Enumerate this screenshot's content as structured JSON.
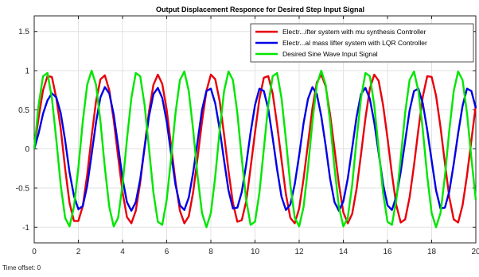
{
  "chart_data": {
    "type": "line",
    "title": "Output Displacement Responce for Desired Step Input Signal",
    "xlabel": "",
    "ylabel": "",
    "xlim": [
      0,
      20
    ],
    "ylim": [
      -1.2,
      1.7
    ],
    "xticks": [
      0,
      2,
      4,
      6,
      8,
      10,
      12,
      14,
      16,
      18,
      20
    ],
    "xtick_labels": [
      "0",
      "2",
      "4",
      "6",
      "8",
      "10",
      "12",
      "14",
      "16",
      "18",
      "20"
    ],
    "yticks": [
      -1,
      -0.5,
      0,
      0.5,
      1,
      1.5
    ],
    "ytick_labels": [
      "-1",
      "-0.5",
      "0",
      "0.5",
      "1",
      "1.5"
    ],
    "grid": true,
    "legend_position": "top-right",
    "series": [
      {
        "name": "Electr...ifter system with mu synthesis Controller",
        "color": "#e8000b",
        "x": [
          0,
          0.2,
          0.4,
          0.6,
          0.8,
          1.0,
          1.2,
          1.4,
          1.6,
          1.8,
          2.0,
          2.2,
          2.4,
          2.6,
          2.8,
          3.0,
          3.2,
          3.4,
          3.6,
          3.8,
          4.0,
          4.2,
          4.4,
          4.6,
          4.8,
          5.0,
          5.2,
          5.4,
          5.6,
          5.8,
          6.0,
          6.2,
          6.4,
          6.6,
          6.8,
          7.0,
          7.2,
          7.4,
          7.6,
          7.8,
          8.0,
          8.2,
          8.4,
          8.6,
          8.8,
          9.0,
          9.2,
          9.4,
          9.6,
          9.8,
          10.0,
          10.2,
          10.4,
          10.6,
          10.8,
          11.0,
          11.2,
          11.4,
          11.6,
          11.8,
          12.0,
          12.2,
          12.4,
          12.6,
          12.8,
          13.0,
          13.2,
          13.4,
          13.6,
          13.8,
          14.0,
          14.2,
          14.4,
          14.6,
          14.8,
          15.0,
          15.2,
          15.4,
          15.6,
          15.8,
          16.0,
          16.2,
          16.4,
          16.6,
          16.8,
          17.0,
          17.2,
          17.4,
          17.6,
          17.8,
          18.0,
          18.2,
          18.4,
          18.6,
          18.8,
          19.0,
          19.2,
          19.4,
          19.6,
          19.8,
          20.0
        ],
        "values": [
          0.0,
          0.4,
          0.75,
          0.93,
          0.92,
          0.65,
          0.26,
          -0.25,
          -0.69,
          -0.92,
          -0.92,
          -0.73,
          -0.33,
          0.16,
          0.61,
          0.89,
          0.94,
          0.75,
          0.37,
          -0.1,
          -0.55,
          -0.87,
          -0.95,
          -0.79,
          -0.43,
          0.03,
          0.48,
          0.82,
          0.95,
          0.83,
          0.5,
          0.04,
          -0.42,
          -0.79,
          -0.95,
          -0.86,
          -0.55,
          -0.11,
          0.35,
          0.74,
          0.95,
          0.89,
          0.61,
          0.18,
          -0.28,
          -0.69,
          -0.93,
          -0.91,
          -0.67,
          -0.24,
          0.21,
          0.64,
          0.91,
          0.93,
          0.71,
          0.31,
          -0.14,
          -0.58,
          -0.88,
          -0.95,
          -0.76,
          -0.38,
          0.07,
          0.52,
          0.85,
          0.95,
          0.8,
          0.44,
          0.0,
          -0.45,
          -0.81,
          -0.95,
          -0.83,
          -0.51,
          -0.07,
          0.39,
          0.77,
          0.95,
          0.87,
          0.56,
          0.14,
          -0.32,
          -0.72,
          -0.94,
          -0.9,
          -0.62,
          -0.21,
          0.25,
          0.67,
          0.93,
          0.92,
          0.68,
          0.28,
          -0.18,
          -0.62,
          -0.9,
          -0.94,
          -0.72,
          -0.34,
          0.11,
          0.56
        ]
      },
      {
        "name": "Electr...al mass lifter system with LQR Controller",
        "color": "#0000e6",
        "x": [
          0,
          0.2,
          0.4,
          0.6,
          0.8,
          1.0,
          1.2,
          1.4,
          1.6,
          1.8,
          2.0,
          2.2,
          2.4,
          2.6,
          2.8,
          3.0,
          3.2,
          3.4,
          3.6,
          3.8,
          4.0,
          4.2,
          4.4,
          4.6,
          4.8,
          5.0,
          5.2,
          5.4,
          5.6,
          5.8,
          6.0,
          6.2,
          6.4,
          6.6,
          6.8,
          7.0,
          7.2,
          7.4,
          7.6,
          7.8,
          8.0,
          8.2,
          8.4,
          8.6,
          8.8,
          9.0,
          9.2,
          9.4,
          9.6,
          9.8,
          10.0,
          10.2,
          10.4,
          10.6,
          10.8,
          11.0,
          11.2,
          11.4,
          11.6,
          11.8,
          12.0,
          12.2,
          12.4,
          12.6,
          12.8,
          13.0,
          13.2,
          13.4,
          13.6,
          13.8,
          14.0,
          14.2,
          14.4,
          14.6,
          14.8,
          15.0,
          15.2,
          15.4,
          15.6,
          15.8,
          16.0,
          16.2,
          16.4,
          16.6,
          16.8,
          17.0,
          17.2,
          17.4,
          17.6,
          17.8,
          18.0,
          18.2,
          18.4,
          18.6,
          18.8,
          19.0,
          19.2,
          19.4,
          19.6,
          19.8,
          20.0
        ],
        "values": [
          0.0,
          0.2,
          0.45,
          0.62,
          0.71,
          0.66,
          0.46,
          0.11,
          -0.3,
          -0.6,
          -0.77,
          -0.73,
          -0.47,
          -0.07,
          0.34,
          0.66,
          0.79,
          0.71,
          0.44,
          0.04,
          -0.38,
          -0.68,
          -0.79,
          -0.68,
          -0.39,
          0.02,
          0.42,
          0.7,
          0.78,
          0.65,
          0.35,
          -0.06,
          -0.46,
          -0.72,
          -0.78,
          -0.62,
          -0.3,
          0.1,
          0.5,
          0.74,
          0.77,
          0.58,
          0.25,
          -0.15,
          -0.53,
          -0.76,
          -0.75,
          -0.55,
          -0.2,
          0.21,
          0.56,
          0.77,
          0.74,
          0.51,
          0.14,
          -0.26,
          -0.61,
          -0.78,
          -0.71,
          -0.45,
          -0.08,
          0.33,
          0.64,
          0.79,
          0.7,
          0.42,
          0.04,
          -0.38,
          -0.68,
          -0.79,
          -0.67,
          -0.38,
          0.01,
          0.41,
          0.7,
          0.78,
          0.64,
          0.34,
          -0.05,
          -0.45,
          -0.72,
          -0.78,
          -0.61,
          -0.29,
          0.1,
          0.49,
          0.74,
          0.77,
          0.58,
          0.24,
          -0.15,
          -0.53,
          -0.76,
          -0.75,
          -0.54,
          -0.19,
          0.2,
          0.55,
          0.77,
          0.74,
          0.52
        ]
      },
      {
        "name": "Desired Sine Wave Input Signal",
        "color": "#00e600",
        "x": [
          0,
          0.2,
          0.4,
          0.6,
          0.8,
          1.0,
          1.2,
          1.4,
          1.6,
          1.8,
          2.0,
          2.2,
          2.4,
          2.6,
          2.8,
          3.0,
          3.2,
          3.4,
          3.6,
          3.8,
          4.0,
          4.2,
          4.4,
          4.6,
          4.8,
          5.0,
          5.2,
          5.4,
          5.6,
          5.8,
          6.0,
          6.2,
          6.4,
          6.6,
          6.8,
          7.0,
          7.2,
          7.4,
          7.6,
          7.8,
          8.0,
          8.2,
          8.4,
          8.6,
          8.8,
          9.0,
          9.2,
          9.4,
          9.6,
          9.8,
          10.0,
          10.2,
          10.4,
          10.6,
          10.8,
          11.0,
          11.2,
          11.4,
          11.6,
          11.8,
          12.0,
          12.2,
          12.4,
          12.6,
          12.8,
          13.0,
          13.2,
          13.4,
          13.6,
          13.8,
          14.0,
          14.2,
          14.4,
          14.6,
          14.8,
          15.0,
          15.2,
          15.4,
          15.6,
          15.8,
          16.0,
          16.2,
          16.4,
          16.6,
          16.8,
          17.0,
          17.2,
          17.4,
          17.6,
          17.8,
          18.0,
          18.2,
          18.4,
          18.6,
          18.8,
          19.0,
          19.2,
          19.4,
          19.6,
          19.8,
          20.0
        ],
        "values": [
          0.0,
          0.56,
          0.93,
          0.97,
          0.65,
          0.12,
          -0.46,
          -0.88,
          -0.99,
          -0.74,
          -0.24,
          0.35,
          0.82,
          1.0,
          0.82,
          0.35,
          -0.24,
          -0.74,
          -0.99,
          -0.88,
          -0.46,
          0.12,
          0.65,
          0.97,
          0.93,
          0.56,
          0.0,
          -0.56,
          -0.93,
          -0.97,
          -0.65,
          -0.12,
          0.46,
          0.88,
          0.99,
          0.74,
          0.24,
          -0.35,
          -0.82,
          -1.0,
          -0.82,
          -0.35,
          0.24,
          0.74,
          0.99,
          0.88,
          0.46,
          -0.12,
          -0.65,
          -0.97,
          -0.93,
          -0.56,
          0.0,
          0.56,
          0.93,
          0.97,
          0.65,
          0.12,
          -0.46,
          -0.88,
          -0.99,
          -0.74,
          -0.24,
          0.35,
          0.82,
          1.0,
          0.82,
          0.35,
          -0.24,
          -0.74,
          -0.99,
          -0.88,
          -0.46,
          0.12,
          0.65,
          0.97,
          0.93,
          0.56,
          0.0,
          -0.56,
          -0.93,
          -0.97,
          -0.65,
          -0.12,
          0.46,
          0.88,
          0.99,
          0.74,
          0.24,
          -0.35,
          -0.82,
          -1.0,
          -0.82,
          -0.35,
          0.24,
          0.74,
          0.99,
          0.88,
          0.46,
          -0.12,
          -0.65
        ]
      }
    ]
  },
  "footer": {
    "text": "Time offset:  0"
  }
}
